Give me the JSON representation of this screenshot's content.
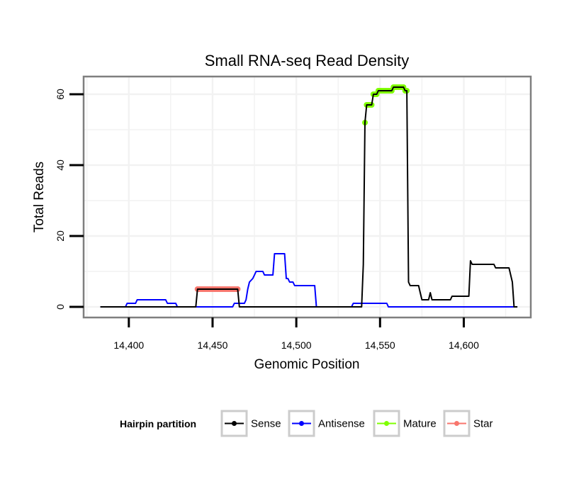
{
  "chart_data": {
    "type": "line",
    "title": "Small RNA-seq Read Density",
    "xlabel": "Genomic Position",
    "ylabel": "Total Reads",
    "xlim": [
      14373,
      14640
    ],
    "ylim": [
      -3,
      65
    ],
    "x_ticks": [
      14400,
      14450,
      14500,
      14550,
      14600
    ],
    "x_tick_labels": [
      "14,400",
      "14,450",
      "14,500",
      "14,550",
      "14,600"
    ],
    "y_ticks": [
      0,
      20,
      40,
      60
    ],
    "y_tick_labels": [
      "0",
      "20",
      "40",
      "60"
    ],
    "grid": true,
    "legend": {
      "title": "Hairpin partition",
      "position": "bottom",
      "entries": [
        "Sense",
        "Antisense",
        "Mature",
        "Star"
      ]
    },
    "series": [
      {
        "name": "Sense",
        "color": "#000000",
        "style": "line",
        "points": [
          [
            14383,
            0
          ],
          [
            14440,
            0
          ],
          [
            14441,
            5
          ],
          [
            14465,
            5
          ],
          [
            14466,
            0
          ],
          [
            14539,
            0
          ],
          [
            14540,
            12
          ],
          [
            14541,
            52
          ],
          [
            14542,
            57
          ],
          [
            14545,
            57
          ],
          [
            14546,
            60
          ],
          [
            14548,
            60
          ],
          [
            14549,
            61
          ],
          [
            14557,
            61
          ],
          [
            14558,
            62
          ],
          [
            14564,
            62
          ],
          [
            14565,
            61
          ],
          [
            14566,
            61
          ],
          [
            14567,
            7
          ],
          [
            14568,
            6
          ],
          [
            14573,
            6
          ],
          [
            14574,
            4
          ],
          [
            14575,
            2
          ],
          [
            14579,
            2
          ],
          [
            14580,
            4
          ],
          [
            14581,
            2
          ],
          [
            14592,
            2
          ],
          [
            14593,
            3
          ],
          [
            14603,
            3
          ],
          [
            14604,
            13
          ],
          [
            14605,
            12
          ],
          [
            14618,
            12
          ],
          [
            14619,
            11
          ],
          [
            14627,
            11
          ],
          [
            14629,
            7
          ],
          [
            14630,
            0
          ],
          [
            14632,
            0
          ]
        ]
      },
      {
        "name": "Antisense",
        "color": "#0000ff",
        "style": "line",
        "points": [
          [
            14383,
            0
          ],
          [
            14398,
            0
          ],
          [
            14399,
            1
          ],
          [
            14404,
            1
          ],
          [
            14405,
            2
          ],
          [
            14422,
            2
          ],
          [
            14423,
            1
          ],
          [
            14428,
            1
          ],
          [
            14429,
            0
          ],
          [
            14462,
            0
          ],
          [
            14463,
            1
          ],
          [
            14469,
            1
          ],
          [
            14470,
            2
          ],
          [
            14471,
            5
          ],
          [
            14472,
            7
          ],
          [
            14474,
            8
          ],
          [
            14475,
            9
          ],
          [
            14476,
            10
          ],
          [
            14480,
            10
          ],
          [
            14481,
            9
          ],
          [
            14486,
            9
          ],
          [
            14487,
            15
          ],
          [
            14493,
            15
          ],
          [
            14494,
            8
          ],
          [
            14495,
            8
          ],
          [
            14496,
            7
          ],
          [
            14498,
            7
          ],
          [
            14499,
            6
          ],
          [
            14511,
            6
          ],
          [
            14512,
            0
          ],
          [
            14533,
            0
          ],
          [
            14534,
            1
          ],
          [
            14554,
            1
          ],
          [
            14555,
            0
          ],
          [
            14632,
            0
          ]
        ]
      },
      {
        "name": "Mature",
        "color": "#7fff00",
        "style": "points",
        "points": [
          [
            14541,
            52
          ],
          [
            14542,
            57
          ],
          [
            14543,
            57
          ],
          [
            14544,
            57
          ],
          [
            14545,
            57
          ],
          [
            14546,
            60
          ],
          [
            14547,
            60
          ],
          [
            14548,
            60
          ],
          [
            14549,
            61
          ],
          [
            14550,
            61
          ],
          [
            14551,
            61
          ],
          [
            14552,
            61
          ],
          [
            14553,
            61
          ],
          [
            14554,
            61
          ],
          [
            14555,
            61
          ],
          [
            14556,
            61
          ],
          [
            14557,
            61
          ],
          [
            14558,
            62
          ],
          [
            14559,
            62
          ],
          [
            14560,
            62
          ],
          [
            14561,
            62
          ],
          [
            14562,
            62
          ],
          [
            14563,
            62
          ],
          [
            14564,
            62
          ],
          [
            14565,
            61
          ],
          [
            14566,
            61
          ]
        ]
      },
      {
        "name": "Star",
        "color": "#f8766d",
        "style": "points",
        "points": [
          [
            14441,
            5
          ],
          [
            14442,
            5
          ],
          [
            14443,
            5
          ],
          [
            14444,
            5
          ],
          [
            14445,
            5
          ],
          [
            14446,
            5
          ],
          [
            14447,
            5
          ],
          [
            14448,
            5
          ],
          [
            14449,
            5
          ],
          [
            14450,
            5
          ],
          [
            14451,
            5
          ],
          [
            14452,
            5
          ],
          [
            14453,
            5
          ],
          [
            14454,
            5
          ],
          [
            14455,
            5
          ],
          [
            14456,
            5
          ],
          [
            14457,
            5
          ],
          [
            14458,
            5
          ],
          [
            14459,
            5
          ],
          [
            14460,
            5
          ],
          [
            14461,
            5
          ],
          [
            14462,
            5
          ],
          [
            14463,
            5
          ],
          [
            14464,
            5
          ],
          [
            14465,
            5
          ]
        ]
      }
    ]
  }
}
